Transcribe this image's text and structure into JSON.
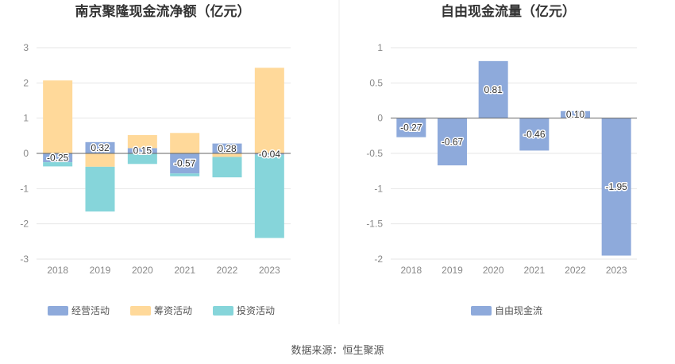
{
  "chart_data": [
    {
      "type": "bar",
      "stacked": true,
      "title": "南京聚隆现金流净额（亿元）",
      "categories": [
        "2018",
        "2019",
        "2020",
        "2021",
        "2022",
        "2023"
      ],
      "ylim": [
        -3,
        3
      ],
      "yticks": [
        -3,
        -2,
        -1,
        0,
        1,
        2,
        3
      ],
      "grid": true,
      "legend_position": "bottom",
      "series": [
        {
          "name": "经营活动",
          "color": "#8eaadb",
          "values": [
            -0.25,
            0.32,
            0.15,
            -0.57,
            0.28,
            -0.04
          ],
          "labels": [
            "-0.25",
            "0.32",
            "0.15",
            "-0.57",
            "0.28",
            "-0.04"
          ]
        },
        {
          "name": "筹资活动",
          "color": "#ffd99a",
          "values": [
            2.07,
            -0.38,
            0.37,
            0.58,
            -0.1,
            2.43
          ]
        },
        {
          "name": "投资活动",
          "color": "#86d5da",
          "values": [
            -0.12,
            -1.27,
            -0.3,
            -0.08,
            -0.58,
            -2.36
          ]
        }
      ]
    },
    {
      "type": "bar",
      "title": "自由现金流量（亿元）",
      "categories": [
        "2018",
        "2019",
        "2020",
        "2021",
        "2022",
        "2023"
      ],
      "ylim": [
        -2,
        1
      ],
      "yticks": [
        -2,
        -1.5,
        -1,
        -0.5,
        0,
        0.5,
        1
      ],
      "grid": true,
      "legend_position": "bottom",
      "series": [
        {
          "name": "自由现金流",
          "color": "#8eaadb",
          "values": [
            -0.27,
            -0.67,
            0.81,
            -0.46,
            0.1,
            -1.95
          ],
          "labels": [
            "-0.27",
            "-0.67",
            "0.81",
            "-0.46",
            "0.10",
            "-1.95"
          ]
        }
      ]
    }
  ],
  "footer": {
    "source": "数据来源：恒生聚源"
  }
}
